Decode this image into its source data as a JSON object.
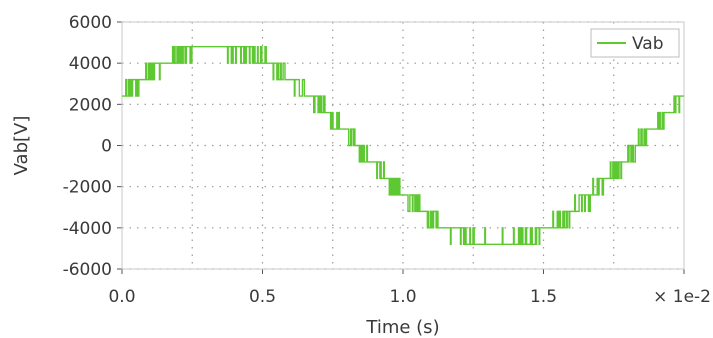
{
  "chart_data": {
    "type": "line",
    "title": "",
    "xlabel": "Time (s)",
    "ylabel": "Vab[V]",
    "x_multiplier_label": "× 1e-2",
    "xlim": [
      0.0,
      2.0
    ],
    "ylim": [
      -6000,
      6000
    ],
    "x_ticks": [
      0.0,
      0.5,
      1.0,
      1.5
    ],
    "x_tick_labels": [
      "0.0",
      "0.5",
      "1.0",
      "1.5"
    ],
    "y_ticks": [
      6000,
      4000,
      2000,
      0,
      -2000,
      -4000,
      -6000
    ],
    "y_tick_labels": [
      "6000",
      "4000",
      "2000",
      "0",
      "-2000",
      "-4000",
      "-6000"
    ],
    "grid": true,
    "legend": {
      "position": "top-right",
      "entries": [
        "Vab"
      ]
    },
    "series": [
      {
        "name": "Vab",
        "color": "#5ec832",
        "description": "multilevel staircase PWM line voltage, 50 Hz, peak about 4800 V, phase 30 deg",
        "amplitude": 4800,
        "frequency_hz": 50,
        "phase_deg": 30,
        "level_step": 800
      }
    ]
  }
}
